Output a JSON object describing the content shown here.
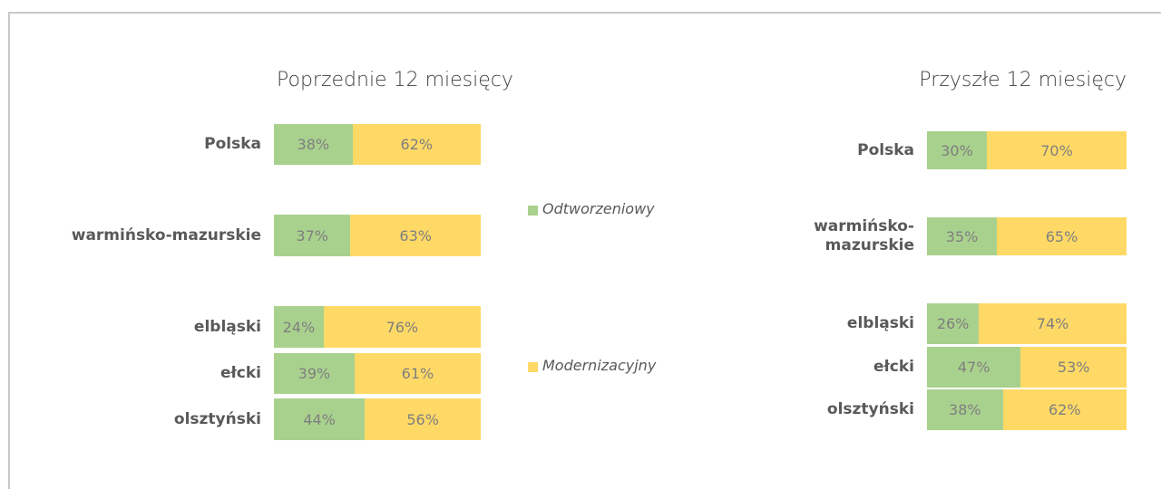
{
  "chart_data": [
    {
      "type": "bar",
      "title": "Poprzednie 12 miesięcy",
      "categories": [
        "Polska",
        "warmińsko-mazurskie",
        "elbląski",
        "ełcki",
        "olsztyński"
      ],
      "series": [
        {
          "name": "Odtworzeniowy",
          "color": "#a9d18e",
          "values": [
            38,
            37,
            24,
            39,
            44
          ],
          "value_labels": [
            "38%",
            "37%",
            "24%",
            "39%",
            "44%"
          ]
        },
        {
          "name": "Modernizacyjny",
          "color": "#ffd966",
          "values": [
            62,
            63,
            76,
            61,
            56
          ],
          "value_labels": [
            "62%",
            "63%",
            "76%",
            "61%",
            "56%"
          ]
        }
      ]
    },
    {
      "type": "bar",
      "title": "Przyszłe 12 miesięcy",
      "categories": [
        "Polska",
        "warmińsko-mazurskie",
        "elbląski",
        "ełcki",
        "olsztyński"
      ],
      "series": [
        {
          "name": "Odtworzeniowy",
          "color": "#a9d18e",
          "values": [
            30,
            35,
            26,
            47,
            38
          ],
          "value_labels": [
            "30%",
            "35%",
            "26%",
            "47%",
            "38%"
          ]
        },
        {
          "name": "Modernizacyjny",
          "color": "#ffd966",
          "values": [
            70,
            65,
            74,
            53,
            62
          ],
          "value_labels": [
            "70%",
            "65%",
            "74%",
            "53%",
            "62%"
          ]
        }
      ]
    }
  ]
}
